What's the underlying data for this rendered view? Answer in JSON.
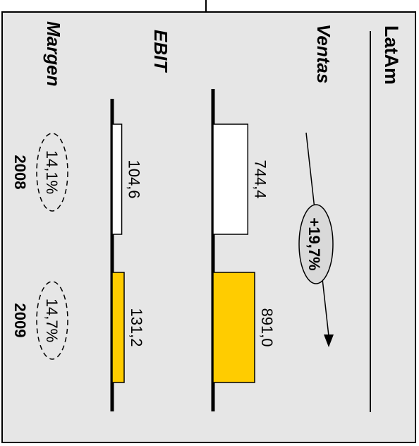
{
  "chart_data": {
    "type": "bar",
    "title": "LatAm",
    "categories": [
      "2008",
      "2009"
    ],
    "series": [
      {
        "name": "Ventas",
        "values": [
          744.4,
          891.0
        ],
        "labels": [
          "744,4",
          "891,0"
        ]
      },
      {
        "name": "EBIT",
        "values": [
          104.6,
          131.2
        ],
        "labels": [
          "104,6",
          "131,2"
        ]
      }
    ],
    "margins": [
      {
        "name": "Margen",
        "values": [
          "14,1%",
          "14,7%"
        ]
      }
    ],
    "annotation": {
      "text": "+19,7%"
    },
    "colors": {
      "base_year": "#ffffff",
      "current_year": "#ffcc00",
      "panel": "#e6e6e6",
      "oval": "#d9d9d9"
    }
  }
}
